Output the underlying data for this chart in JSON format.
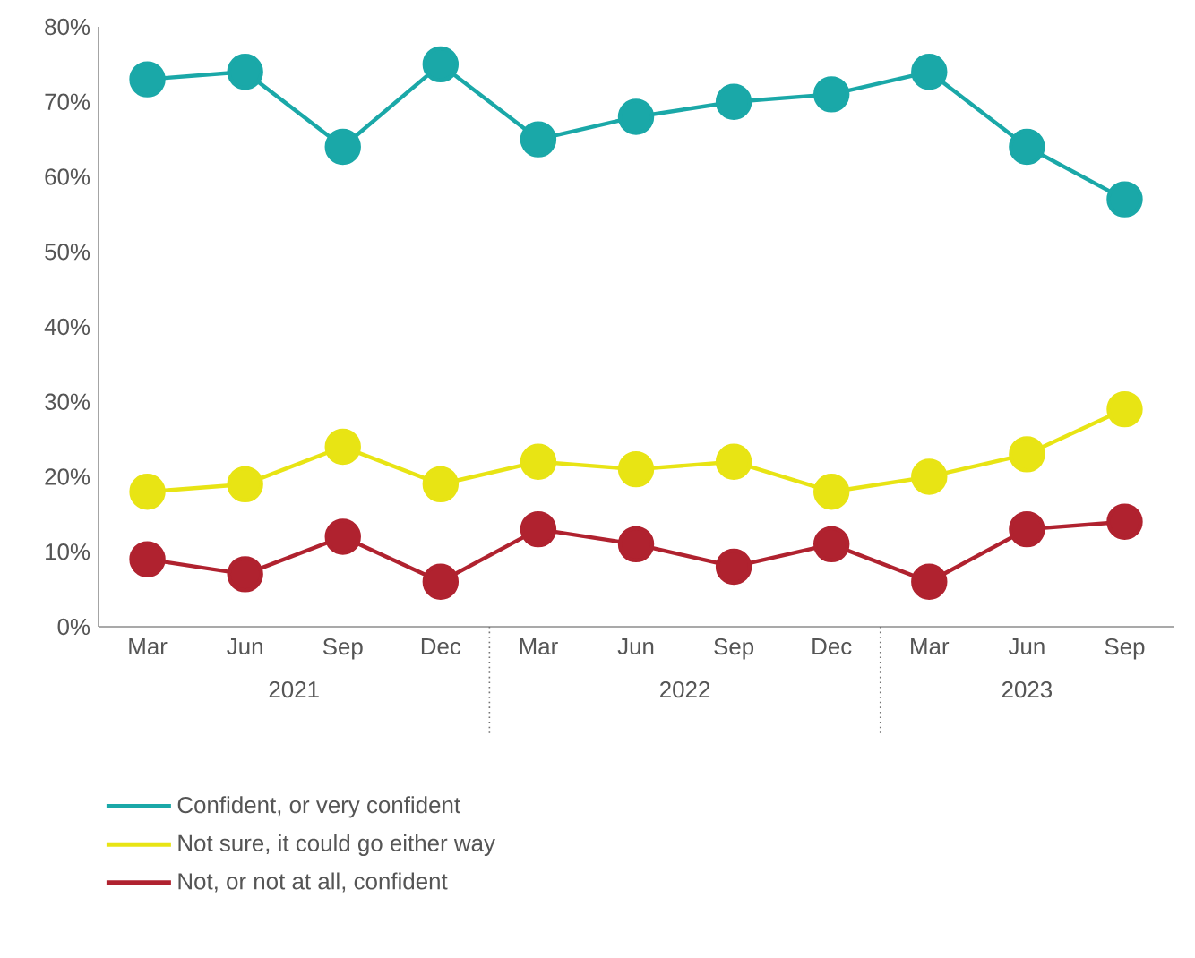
{
  "chart_data": {
    "type": "line",
    "categories": [
      "Mar",
      "Jun",
      "Sep",
      "Dec",
      "Mar",
      "Jun",
      "Sep",
      "Dec",
      "Mar",
      "Jun",
      "Sep"
    ],
    "series": [
      {
        "name": "Confident, or very confident",
        "color": "#1aa8a8",
        "values": [
          73,
          74,
          64,
          75,
          65,
          68,
          70,
          71,
          74,
          64,
          57
        ]
      },
      {
        "name": "Not sure, it could go either way",
        "color": "#e8e414",
        "values": [
          18,
          19,
          24,
          19,
          22,
          21,
          22,
          18,
          20,
          23,
          29
        ]
      },
      {
        "name": "Not, or not at all, confident",
        "color": "#b0222f",
        "values": [
          9,
          7,
          12,
          6,
          13,
          11,
          8,
          11,
          6,
          13,
          14
        ]
      }
    ],
    "ylim": [
      0,
      80
    ],
    "yticks": [
      {
        "value": 0,
        "label": "0%"
      },
      {
        "value": 10,
        "label": "10%"
      },
      {
        "value": 20,
        "label": "20%"
      },
      {
        "value": 30,
        "label": "30%"
      },
      {
        "value": 40,
        "label": "40%"
      },
      {
        "value": 50,
        "label": "50%"
      },
      {
        "value": 60,
        "label": "60%"
      },
      {
        "value": 70,
        "label": "70%"
      },
      {
        "value": 80,
        "label": "80%"
      }
    ],
    "annotations": [
      "2021",
      "2022",
      "2023"
    ],
    "marker": "circle",
    "line_style": "solid",
    "legend": "bottom",
    "grid": false
  }
}
